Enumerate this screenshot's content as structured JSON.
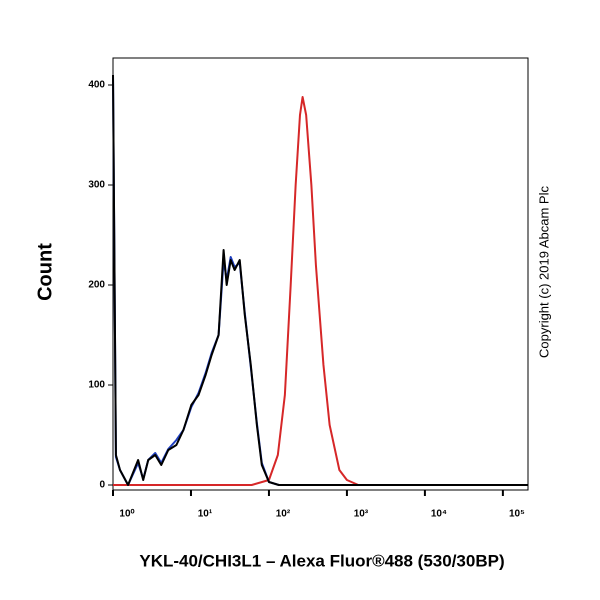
{
  "chart_data": {
    "type": "line",
    "y_label": "Count",
    "x_label": "YKL-40/CHI3L1 – Alexa Fluor®488 (530/30BP)",
    "annotation": "Copyright (c) 2019 Abcam Plc",
    "log_x": true,
    "xlim": [
      1,
      210000
    ],
    "ylim": [
      -5,
      427
    ],
    "xticks": [
      {
        "value": 1,
        "label": "10⁰"
      },
      {
        "value": 10,
        "label": "10¹"
      },
      {
        "value": 100,
        "label": "10²"
      },
      {
        "value": 1000,
        "label": "10³"
      },
      {
        "value": 10000,
        "label": "10⁴"
      },
      {
        "value": 100000,
        "label": "10⁵"
      }
    ],
    "yticks": [
      0,
      100,
      200,
      300,
      400
    ],
    "series": [
      {
        "color": "#d62728",
        "x": [
          1,
          60,
          100,
          130,
          160,
          190,
          220,
          250,
          270,
          300,
          350,
          400,
          500,
          600,
          800,
          1000,
          1400,
          210000
        ],
        "values": [
          0,
          0,
          5,
          30,
          90,
          200,
          300,
          370,
          388,
          370,
          300,
          220,
          120,
          60,
          15,
          5,
          0,
          0
        ]
      },
      {
        "color": "#1f3fbf",
        "x": [
          1,
          1.09,
          1.23,
          1.56,
          2.1,
          2.44,
          2.83,
          3.48,
          4.16,
          5.12,
          6.5,
          8,
          10.1,
          12.5,
          15.4,
          18.4,
          22.6,
          26.2,
          28.7,
          32.3,
          36.3,
          42.2,
          49,
          58.5,
          70,
          81,
          100,
          134,
          210000
        ],
        "values": [
          410,
          28,
          15,
          0,
          22,
          6,
          25,
          32,
          22,
          36,
          45,
          55,
          78,
          92,
          112,
          132,
          150,
          225,
          205,
          228,
          218,
          222,
          172,
          118,
          62,
          22,
          3,
          0,
          0
        ]
      },
      {
        "color": "#000000",
        "x": [
          1,
          1.09,
          1.23,
          1.56,
          2.1,
          2.44,
          2.83,
          3.48,
          4.16,
          5.12,
          6.5,
          8,
          10.1,
          12.5,
          15.4,
          18.4,
          22.6,
          26.2,
          28.7,
          32.3,
          36.3,
          42.2,
          49,
          58.5,
          70,
          81,
          100,
          134,
          210000
        ],
        "values": [
          410,
          30,
          15,
          0,
          25,
          5,
          25,
          30,
          20,
          35,
          40,
          55,
          80,
          90,
          110,
          130,
          150,
          235,
          200,
          225,
          215,
          225,
          170,
          120,
          60,
          20,
          3,
          0,
          0
        ]
      }
    ]
  }
}
